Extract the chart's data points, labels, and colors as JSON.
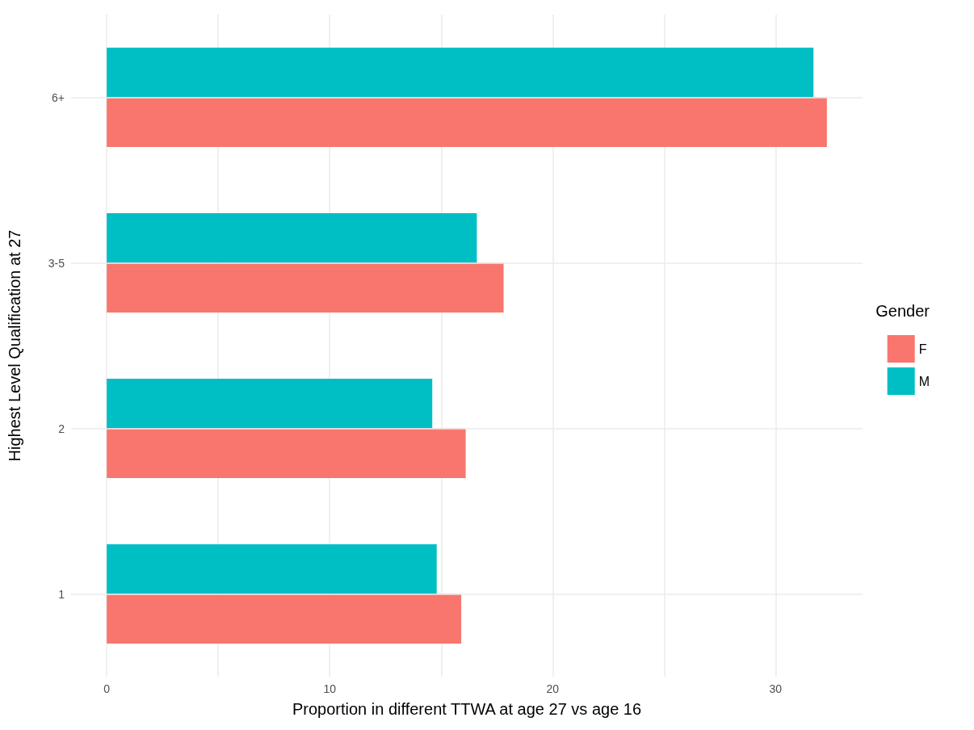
{
  "chart_data": {
    "type": "bar",
    "orientation": "horizontal",
    "xlabel": "Proportion in different TTWA at age 27 vs age 16",
    "ylabel": "Highest Level Qualification at 27",
    "legend_title": "Gender",
    "categories": [
      "6+",
      "3-5",
      "2",
      "1"
    ],
    "series": [
      {
        "name": "F",
        "color": "#f8766d",
        "values": [
          32.3,
          17.8,
          16.1,
          15.9
        ]
      },
      {
        "name": "M",
        "color": "#00bfc4",
        "values": [
          31.7,
          16.6,
          14.6,
          14.8
        ]
      }
    ],
    "xlim": [
      -1.6,
      33.9
    ],
    "xticks": [
      0,
      {
        "value": 5,
        "label": null
      },
      10,
      {
        "value": 15,
        "label": null
      },
      20,
      {
        "value": 25,
        "label": null
      },
      30
    ],
    "grid": true,
    "legend": "right"
  }
}
